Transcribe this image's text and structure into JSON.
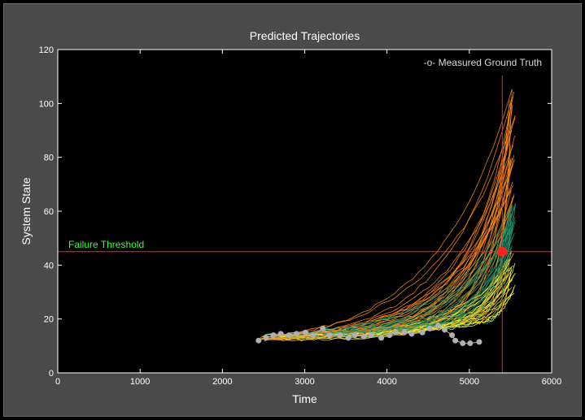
{
  "chart_data": {
    "type": "line",
    "title": "Predicted Trajectories",
    "xlabel": "Time",
    "ylabel": "System State",
    "xlim": [
      0,
      6000
    ],
    "ylim": [
      0,
      120
    ],
    "xticks": [
      0,
      1000,
      2000,
      3000,
      4000,
      5000,
      6000
    ],
    "yticks": [
      0,
      20,
      40,
      60,
      80,
      100,
      120
    ],
    "grid": false,
    "legend": {
      "position": "top-right",
      "entries": [
        "-o- Measured Ground Truth"
      ]
    },
    "annotations": [
      {
        "text": "Failure Threshold",
        "type": "hline",
        "y": 45,
        "color": "#ff2020",
        "text_color": "#33ff33"
      },
      {
        "type": "vline",
        "x": 5400,
        "color": "#ff2020"
      },
      {
        "type": "marker",
        "x": 5400,
        "y": 45,
        "color": "#ff2020"
      }
    ],
    "colors": {
      "background": "#000000",
      "panel": "#4a4a4a",
      "prediction_series": [
        "#ff8c1a",
        "#ffd21a",
        "#ffff33",
        "#1fa37a",
        "#1a7a5a"
      ],
      "ground_truth": "#b0b0b0"
    },
    "trajectory_model": {
      "description": "Bundle of predicted trajectories, roughly exponential growth from ~12-14 at t≈2450 up to ~35-107 at t≈5500",
      "start_time_range": [
        2450,
        5200
      ],
      "end_time": [
        5480,
        5560
      ],
      "end_value_range": [
        30,
        107
      ],
      "count": 85
    },
    "series": [
      {
        "name": "-o- Measured Ground Truth",
        "x": [
          2440,
          2530,
          2620,
          2710,
          2810,
          2900,
          3010,
          3100,
          3220,
          3300,
          3430,
          3530,
          3610,
          3720,
          3810,
          3930,
          4030,
          4110,
          4210,
          4300,
          4430,
          4520,
          4620,
          4700,
          4790,
          4830,
          4920,
          5010,
          5120
        ],
        "y": [
          12,
          13,
          14,
          14.5,
          14,
          14.5,
          15,
          14,
          16.5,
          14,
          14,
          13,
          14,
          13.5,
          14,
          13,
          14,
          15,
          15,
          14.5,
          15,
          16.5,
          17.5,
          16,
          14,
          12,
          11,
          11,
          11.5
        ]
      }
    ]
  }
}
